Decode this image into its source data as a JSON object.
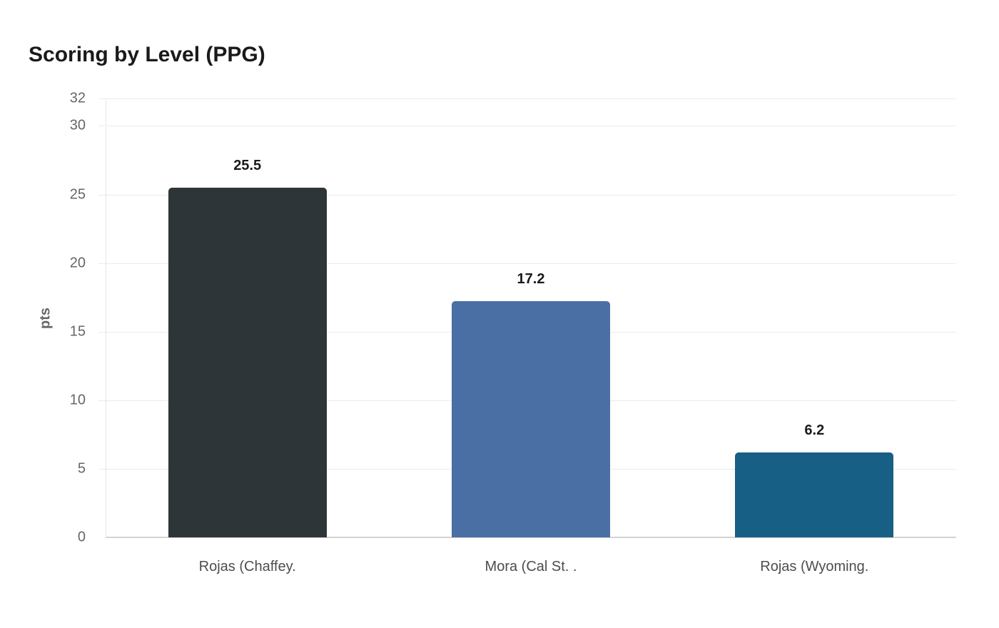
{
  "chart_data": {
    "type": "bar",
    "title": "Scoring by Level (PPG)",
    "xlabel": "",
    "ylabel": "pts",
    "ylim": [
      0,
      32
    ],
    "yticks": [
      0,
      5,
      10,
      15,
      20,
      25,
      30,
      32
    ],
    "grid": true,
    "legend": "none",
    "categories": [
      "Rojas (Chaffey.",
      "Mora (Cal St. .",
      "Rojas (Wyoming."
    ],
    "values": [
      25.5,
      17.2,
      6.2
    ],
    "value_labels": [
      "25.5",
      "17.2",
      "6.2"
    ],
    "colors": [
      "#2e3538",
      "#4a6fa5",
      "#185f86"
    ]
  }
}
